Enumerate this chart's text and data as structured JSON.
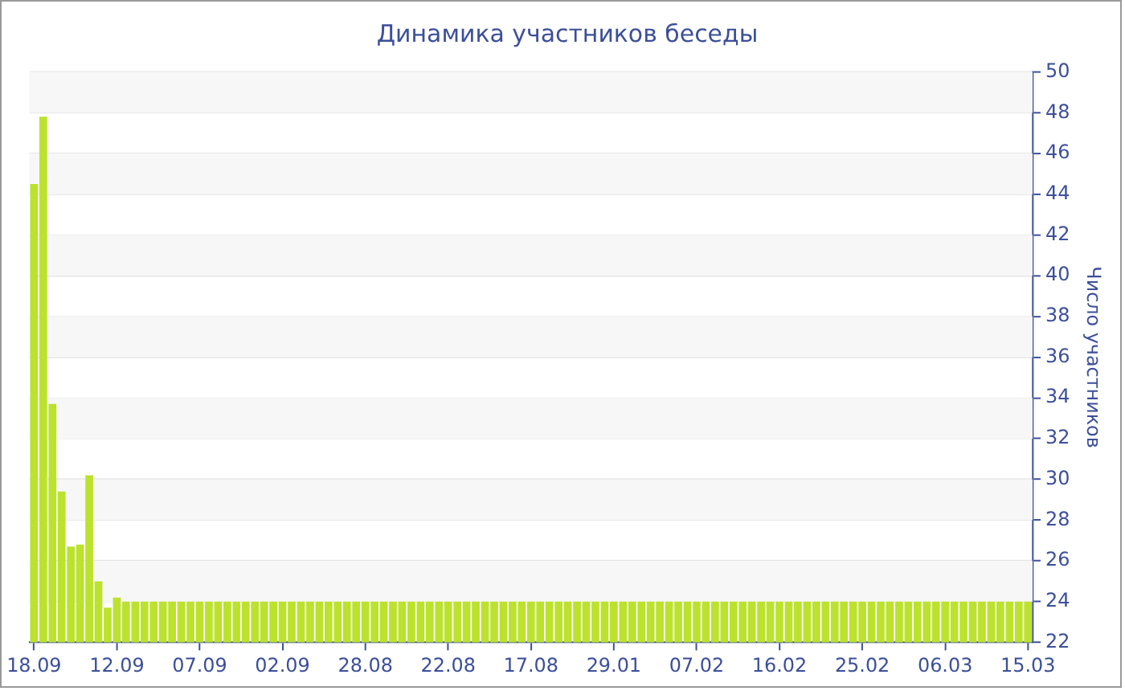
{
  "chart_data": {
    "type": "bar",
    "title": "Динамика участников беседы",
    "ylabel": "Число участников",
    "categories": [
      "18.09",
      null,
      null,
      null,
      null,
      null,
      null,
      null,
      null,
      "12.09",
      null,
      null,
      null,
      null,
      null,
      null,
      null,
      null,
      "07.09",
      null,
      null,
      null,
      null,
      null,
      null,
      null,
      null,
      "02.09",
      null,
      null,
      null,
      null,
      null,
      null,
      null,
      null,
      "28.08",
      null,
      null,
      null,
      null,
      null,
      null,
      null,
      null,
      "22.08",
      null,
      null,
      null,
      null,
      null,
      null,
      null,
      null,
      "17.08",
      null,
      null,
      null,
      null,
      null,
      null,
      null,
      null,
      "29.01",
      null,
      null,
      null,
      null,
      null,
      null,
      null,
      null,
      "07.02",
      null,
      null,
      null,
      null,
      null,
      null,
      null,
      null,
      "16.02",
      null,
      null,
      null,
      null,
      null,
      null,
      null,
      null,
      "25.02",
      null,
      null,
      null,
      null,
      null,
      null,
      null,
      null,
      "06.03",
      null,
      null,
      null,
      null,
      null,
      null,
      null,
      null,
      "15.03"
    ],
    "values": [
      44.5,
      47.8,
      33.7,
      29.4,
      26.7,
      26.8,
      30.2,
      25.0,
      23.7,
      24.2,
      24,
      24,
      24,
      24,
      24,
      24,
      24,
      24,
      24,
      24,
      24,
      24,
      24,
      24,
      24,
      24,
      24,
      24,
      24,
      24,
      24,
      24,
      24,
      24,
      24,
      24,
      24,
      24,
      24,
      24,
      24,
      24,
      24,
      24,
      24,
      24,
      24,
      24,
      24,
      24,
      24,
      24,
      24,
      24,
      24,
      24,
      24,
      24,
      24,
      24,
      24,
      24,
      24,
      24,
      24,
      24,
      24,
      24,
      24,
      24,
      24,
      24,
      24,
      24,
      24,
      24,
      24,
      24,
      24,
      24,
      24,
      24,
      24,
      24,
      24,
      24,
      24,
      24,
      24,
      24,
      24,
      24,
      24,
      24,
      24,
      24,
      24,
      24,
      24,
      24,
      24,
      24,
      24,
      24,
      24,
      24,
      24,
      24,
      24
    ],
    "color": "#bce22e",
    "ylim": [
      22,
      50
    ],
    "yticks": [
      22,
      24,
      26,
      28,
      30,
      32,
      34,
      36,
      38,
      40,
      42,
      44,
      46,
      48,
      50
    ],
    "grid": "y",
    "legend": false
  }
}
